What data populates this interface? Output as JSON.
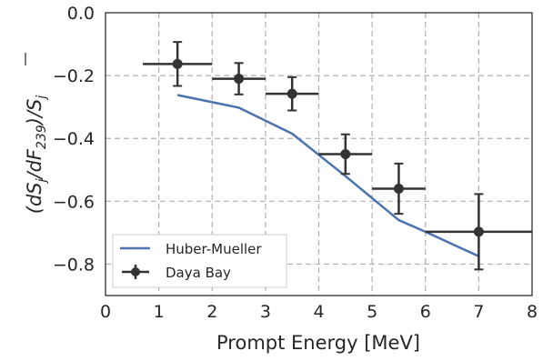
{
  "chart_data": {
    "type": "scatter",
    "xlabel": "Prompt Energy [MeV]",
    "ylabel": "(dS_j/dF_239)/S̄_j",
    "xlim": [
      0,
      8
    ],
    "ylim": [
      -0.9,
      0.0
    ],
    "x_ticks": [
      "0",
      "1",
      "2",
      "3",
      "4",
      "5",
      "6",
      "7",
      "8"
    ],
    "y_ticks": [
      "0.0",
      "−0.2",
      "−0.4",
      "−0.6",
      "−0.8"
    ],
    "grid": true,
    "legend_position": "bottom-left",
    "series": [
      {
        "name": "Huber-Mueller",
        "kind": "line",
        "color": "#4c72b0",
        "x": [
          1.35,
          2.5,
          3.5,
          4.5,
          5.5,
          6.0,
          7.0
        ],
        "y": [
          -0.262,
          -0.302,
          -0.385,
          -0.52,
          -0.66,
          -0.697,
          -0.775
        ]
      },
      {
        "name": "Daya Bay",
        "kind": "errorbar",
        "color": "#333333",
        "x": [
          1.35,
          2.5,
          3.5,
          4.5,
          5.5,
          7.0
        ],
        "y": [
          -0.163,
          -0.21,
          -0.258,
          -0.45,
          -0.56,
          -0.697
        ],
        "x_err_low": [
          0.65,
          0.5,
          0.5,
          0.5,
          0.5,
          1.0
        ],
        "x_err_high": [
          0.65,
          0.5,
          0.5,
          0.5,
          0.5,
          1.0
        ],
        "y_err": [
          0.07,
          0.05,
          0.053,
          0.063,
          0.08,
          0.12
        ]
      }
    ]
  }
}
